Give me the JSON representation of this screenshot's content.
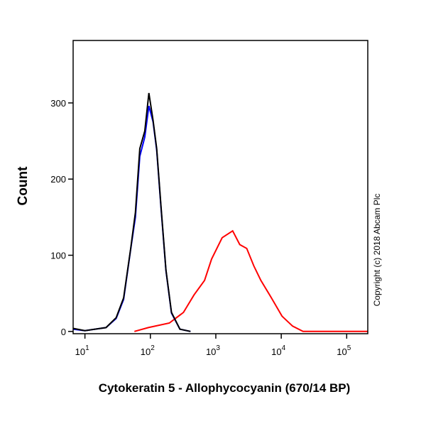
{
  "chart_data": {
    "type": "line",
    "xlabel": "Cytokeratin 5 - Allophycocyanin (670/14 BP)",
    "ylabel": "Count",
    "annotation": "Copyright (c) 2018 Abcam Plc",
    "xscale": "log",
    "xlim": [
      6.6,
      210000
    ],
    "ylim": [
      -3,
      382
    ],
    "xticks": [
      {
        "value": 10,
        "label": "10",
        "sup": "1"
      },
      {
        "value": 100,
        "label": "10",
        "sup": "2"
      },
      {
        "value": 1000,
        "label": "10",
        "sup": "3"
      },
      {
        "value": 10000,
        "label": "10",
        "sup": "4"
      },
      {
        "value": 100000,
        "label": "10",
        "sup": "5"
      }
    ],
    "yticks": [
      0,
      100,
      200,
      300
    ],
    "series": [
      {
        "color": "#ff0000",
        "x": [
          57,
          93,
          195,
          320,
          465,
          673,
          861,
          1250,
          1810,
          2320,
          2970,
          3810,
          4880,
          7070,
          10260,
          14900,
          21500,
          210000
        ],
        "values": [
          0,
          5,
          11,
          25,
          48,
          67,
          95,
          123,
          132,
          114,
          109,
          86,
          67,
          44,
          20,
          7,
          0,
          0
        ]
      },
      {
        "color": "#0000ff",
        "x": [
          6.6,
          10,
          21,
          30,
          39,
          50,
          59,
          69,
          82,
          95,
          110,
          125,
          145,
          173,
          210,
          283,
          410
        ],
        "values": [
          3,
          1,
          5,
          17,
          42,
          108,
          150,
          230,
          255,
          296,
          275,
          238,
          163,
          80,
          24,
          3,
          0
        ]
      },
      {
        "color": "#000000",
        "x": [
          6.6,
          10,
          21,
          30,
          39,
          50,
          59,
          69,
          82,
          95,
          110,
          125,
          145,
          173,
          210,
          283,
          410
        ],
        "values": [
          4,
          1,
          5,
          18,
          44,
          109,
          156,
          240,
          263,
          313,
          277,
          240,
          165,
          81,
          25,
          3,
          0
        ]
      }
    ]
  }
}
